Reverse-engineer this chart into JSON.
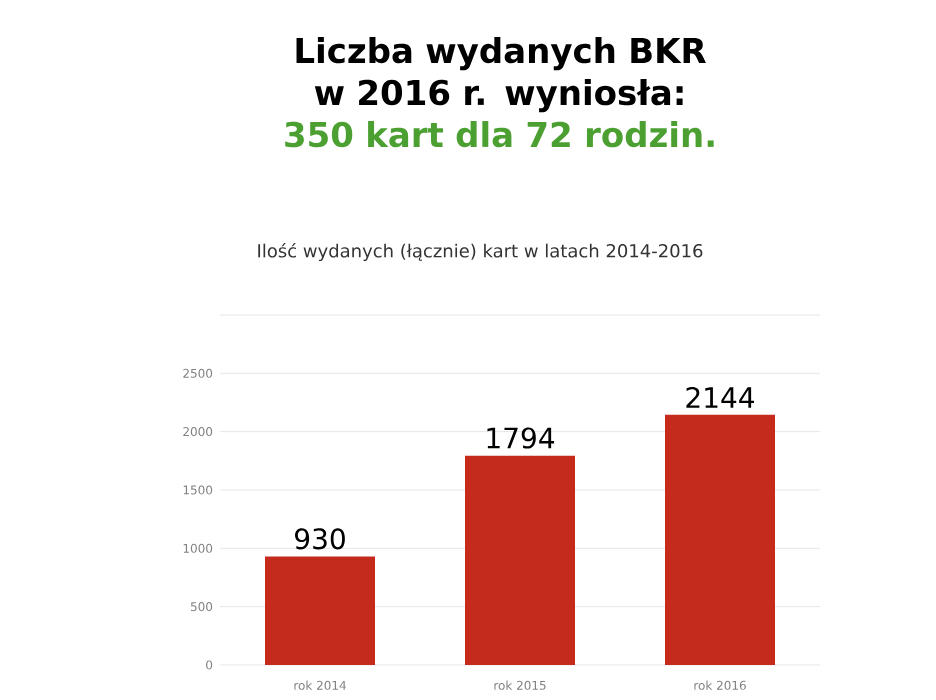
{
  "chart_data": {
    "type": "bar",
    "title": "Liczba wydanych BKR w 2016 r. wyniosła:",
    "annotations": [
      "350 kart dla 72 rodzin."
    ],
    "subtitle": "Ilość wydanych (łącznie) kart w latach 2014-2016",
    "categories": [
      "rok 2014",
      "rok 2015",
      "rok 2016"
    ],
    "values": [
      930,
      1794,
      2144
    ],
    "color": "#c42b1c",
    "ylim": [
      0,
      3000
    ],
    "yticks": [
      0,
      500,
      1000,
      1500,
      2000,
      2500,
      {
        "value": 3000,
        "label": null
      }
    ],
    "grid": "y",
    "data_labels": true
  }
}
